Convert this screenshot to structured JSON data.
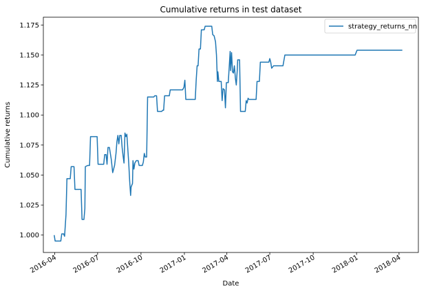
{
  "chart_data": {
    "type": "line",
    "title": "Cumulative returns in test dataset",
    "xlabel": "Date",
    "ylabel": "Cumulative returns",
    "x_axis_type": "date",
    "xlim": [
      "2016-03-08",
      "2018-05-12"
    ],
    "ylim": [
      0.9855,
      1.1815
    ],
    "x_ticks": [
      {
        "date": "2016-04-01",
        "label": "2016-04"
      },
      {
        "date": "2016-07-01",
        "label": "2016-07"
      },
      {
        "date": "2016-10-01",
        "label": "2016-10"
      },
      {
        "date": "2017-01-01",
        "label": "2017-01"
      },
      {
        "date": "2017-04-01",
        "label": "2017-04"
      },
      {
        "date": "2017-07-01",
        "label": "2017-07"
      },
      {
        "date": "2017-10-01",
        "label": "2017-10"
      },
      {
        "date": "2018-01-01",
        "label": "2018-01"
      },
      {
        "date": "2018-04-01",
        "label": "2018-04"
      }
    ],
    "y_ticks": [
      {
        "value": 1.0,
        "label": "1.000"
      },
      {
        "value": 1.025,
        "label": "1.025"
      },
      {
        "value": 1.05,
        "label": "1.050"
      },
      {
        "value": 1.075,
        "label": "1.075"
      },
      {
        "value": 1.1,
        "label": "1.100"
      },
      {
        "value": 1.125,
        "label": "1.125"
      },
      {
        "value": 1.15,
        "label": "1.150"
      },
      {
        "value": 1.175,
        "label": "1.175"
      }
    ],
    "grid": false,
    "legend_position": "top-right",
    "series": [
      {
        "name": "strategy_returns_nn",
        "color": "#1f77b4",
        "points": [
          [
            "2016-03-31",
            1.0
          ],
          [
            "2016-04-02",
            0.995
          ],
          [
            "2016-04-14",
            0.995
          ],
          [
            "2016-04-16",
            1.001
          ],
          [
            "2016-04-20",
            1.001
          ],
          [
            "2016-04-22",
            0.999
          ],
          [
            "2016-04-25",
            1.017
          ],
          [
            "2016-04-27",
            1.047
          ],
          [
            "2016-05-04",
            1.047
          ],
          [
            "2016-05-06",
            1.057
          ],
          [
            "2016-05-12",
            1.057
          ],
          [
            "2016-05-14",
            1.038
          ],
          [
            "2016-05-27",
            1.038
          ],
          [
            "2016-05-29",
            1.013
          ],
          [
            "2016-06-02",
            1.013
          ],
          [
            "2016-06-04",
            1.022
          ],
          [
            "2016-06-05",
            1.057
          ],
          [
            "2016-06-10",
            1.058
          ],
          [
            "2016-06-14",
            1.058
          ],
          [
            "2016-06-16",
            1.082
          ],
          [
            "2016-06-30",
            1.082
          ],
          [
            "2016-07-02",
            1.059
          ],
          [
            "2016-07-14",
            1.059
          ],
          [
            "2016-07-16",
            1.067
          ],
          [
            "2016-07-19",
            1.067
          ],
          [
            "2016-07-21",
            1.059
          ],
          [
            "2016-07-23",
            1.073
          ],
          [
            "2016-07-26",
            1.073
          ],
          [
            "2016-07-30",
            1.063
          ],
          [
            "2016-08-02",
            1.052
          ],
          [
            "2016-08-06",
            1.058
          ],
          [
            "2016-08-09",
            1.068
          ],
          [
            "2016-08-11",
            1.078
          ],
          [
            "2016-08-13",
            1.083
          ],
          [
            "2016-08-15",
            1.076
          ],
          [
            "2016-08-17",
            1.083
          ],
          [
            "2016-08-20",
            1.083
          ],
          [
            "2016-08-22",
            1.073
          ],
          [
            "2016-08-24",
            1.066
          ],
          [
            "2016-08-26",
            1.06
          ],
          [
            "2016-08-28",
            1.085
          ],
          [
            "2016-08-30",
            1.082
          ],
          [
            "2016-09-01",
            1.084
          ],
          [
            "2016-09-03",
            1.072
          ],
          [
            "2016-09-05",
            1.06
          ],
          [
            "2016-09-07",
            1.045
          ],
          [
            "2016-09-09",
            1.033
          ],
          [
            "2016-09-10",
            1.04
          ],
          [
            "2016-09-13",
            1.043
          ],
          [
            "2016-09-14",
            1.062
          ],
          [
            "2016-09-16",
            1.055
          ],
          [
            "2016-09-18",
            1.06
          ],
          [
            "2016-09-21",
            1.062
          ],
          [
            "2016-09-25",
            1.062
          ],
          [
            "2016-09-27",
            1.058
          ],
          [
            "2016-10-04",
            1.058
          ],
          [
            "2016-10-06",
            1.061
          ],
          [
            "2016-10-08",
            1.068
          ],
          [
            "2016-10-10",
            1.065
          ],
          [
            "2016-10-13",
            1.065
          ],
          [
            "2016-10-15",
            1.115
          ],
          [
            "2016-10-28",
            1.115
          ],
          [
            "2016-10-30",
            1.116
          ],
          [
            "2016-11-03",
            1.116
          ],
          [
            "2016-11-05",
            1.103
          ],
          [
            "2016-11-14",
            1.103
          ],
          [
            "2016-11-16",
            1.104
          ],
          [
            "2016-11-18",
            1.104
          ],
          [
            "2016-11-20",
            1.116
          ],
          [
            "2016-11-30",
            1.116
          ],
          [
            "2016-12-02",
            1.121
          ],
          [
            "2016-12-28",
            1.121
          ],
          [
            "2016-12-31",
            1.123
          ],
          [
            "2017-01-02",
            1.129
          ],
          [
            "2017-01-04",
            1.113
          ],
          [
            "2017-01-24",
            1.113
          ],
          [
            "2017-01-26",
            1.129
          ],
          [
            "2017-01-28",
            1.141
          ],
          [
            "2017-01-30",
            1.141
          ],
          [
            "2017-02-01",
            1.155
          ],
          [
            "2017-02-04",
            1.155
          ],
          [
            "2017-02-06",
            1.171
          ],
          [
            "2017-02-12",
            1.171
          ],
          [
            "2017-02-14",
            1.174
          ],
          [
            "2017-02-28",
            1.174
          ],
          [
            "2017-03-02",
            1.167
          ],
          [
            "2017-03-05",
            1.166
          ],
          [
            "2017-03-08",
            1.161
          ],
          [
            "2017-03-10",
            1.15
          ],
          [
            "2017-03-12",
            1.128
          ],
          [
            "2017-03-13",
            1.136
          ],
          [
            "2017-03-15",
            1.128
          ],
          [
            "2017-03-20",
            1.128
          ],
          [
            "2017-03-22",
            1.112
          ],
          [
            "2017-03-24",
            1.122
          ],
          [
            "2017-03-27",
            1.121
          ],
          [
            "2017-03-29",
            1.106
          ],
          [
            "2017-03-31",
            1.127
          ],
          [
            "2017-04-04",
            1.127
          ],
          [
            "2017-04-06",
            1.14
          ],
          [
            "2017-04-08",
            1.153
          ],
          [
            "2017-04-09",
            1.137
          ],
          [
            "2017-04-11",
            1.152
          ],
          [
            "2017-04-13",
            1.136
          ],
          [
            "2017-04-15",
            1.135
          ],
          [
            "2017-04-17",
            1.141
          ],
          [
            "2017-04-19",
            1.131
          ],
          [
            "2017-04-21",
            1.125
          ],
          [
            "2017-04-23",
            1.137
          ],
          [
            "2017-04-24",
            1.146
          ],
          [
            "2017-04-28",
            1.146
          ],
          [
            "2017-04-30",
            1.103
          ],
          [
            "2017-05-10",
            1.103
          ],
          [
            "2017-05-12",
            1.112
          ],
          [
            "2017-05-14",
            1.11
          ],
          [
            "2017-05-16",
            1.114
          ],
          [
            "2017-05-18",
            1.113
          ],
          [
            "2017-06-02",
            1.113
          ],
          [
            "2017-06-04",
            1.128
          ],
          [
            "2017-06-09",
            1.128
          ],
          [
            "2017-06-11",
            1.144
          ],
          [
            "2017-06-29",
            1.144
          ],
          [
            "2017-07-01",
            1.147
          ],
          [
            "2017-07-03",
            1.144
          ],
          [
            "2017-07-05",
            1.139
          ],
          [
            "2017-07-09",
            1.141
          ],
          [
            "2017-07-29",
            1.141
          ],
          [
            "2017-08-02",
            1.15
          ],
          [
            "2017-12-29",
            1.15
          ],
          [
            "2018-01-02",
            1.154
          ],
          [
            "2018-04-08",
            1.154
          ]
        ]
      }
    ]
  }
}
